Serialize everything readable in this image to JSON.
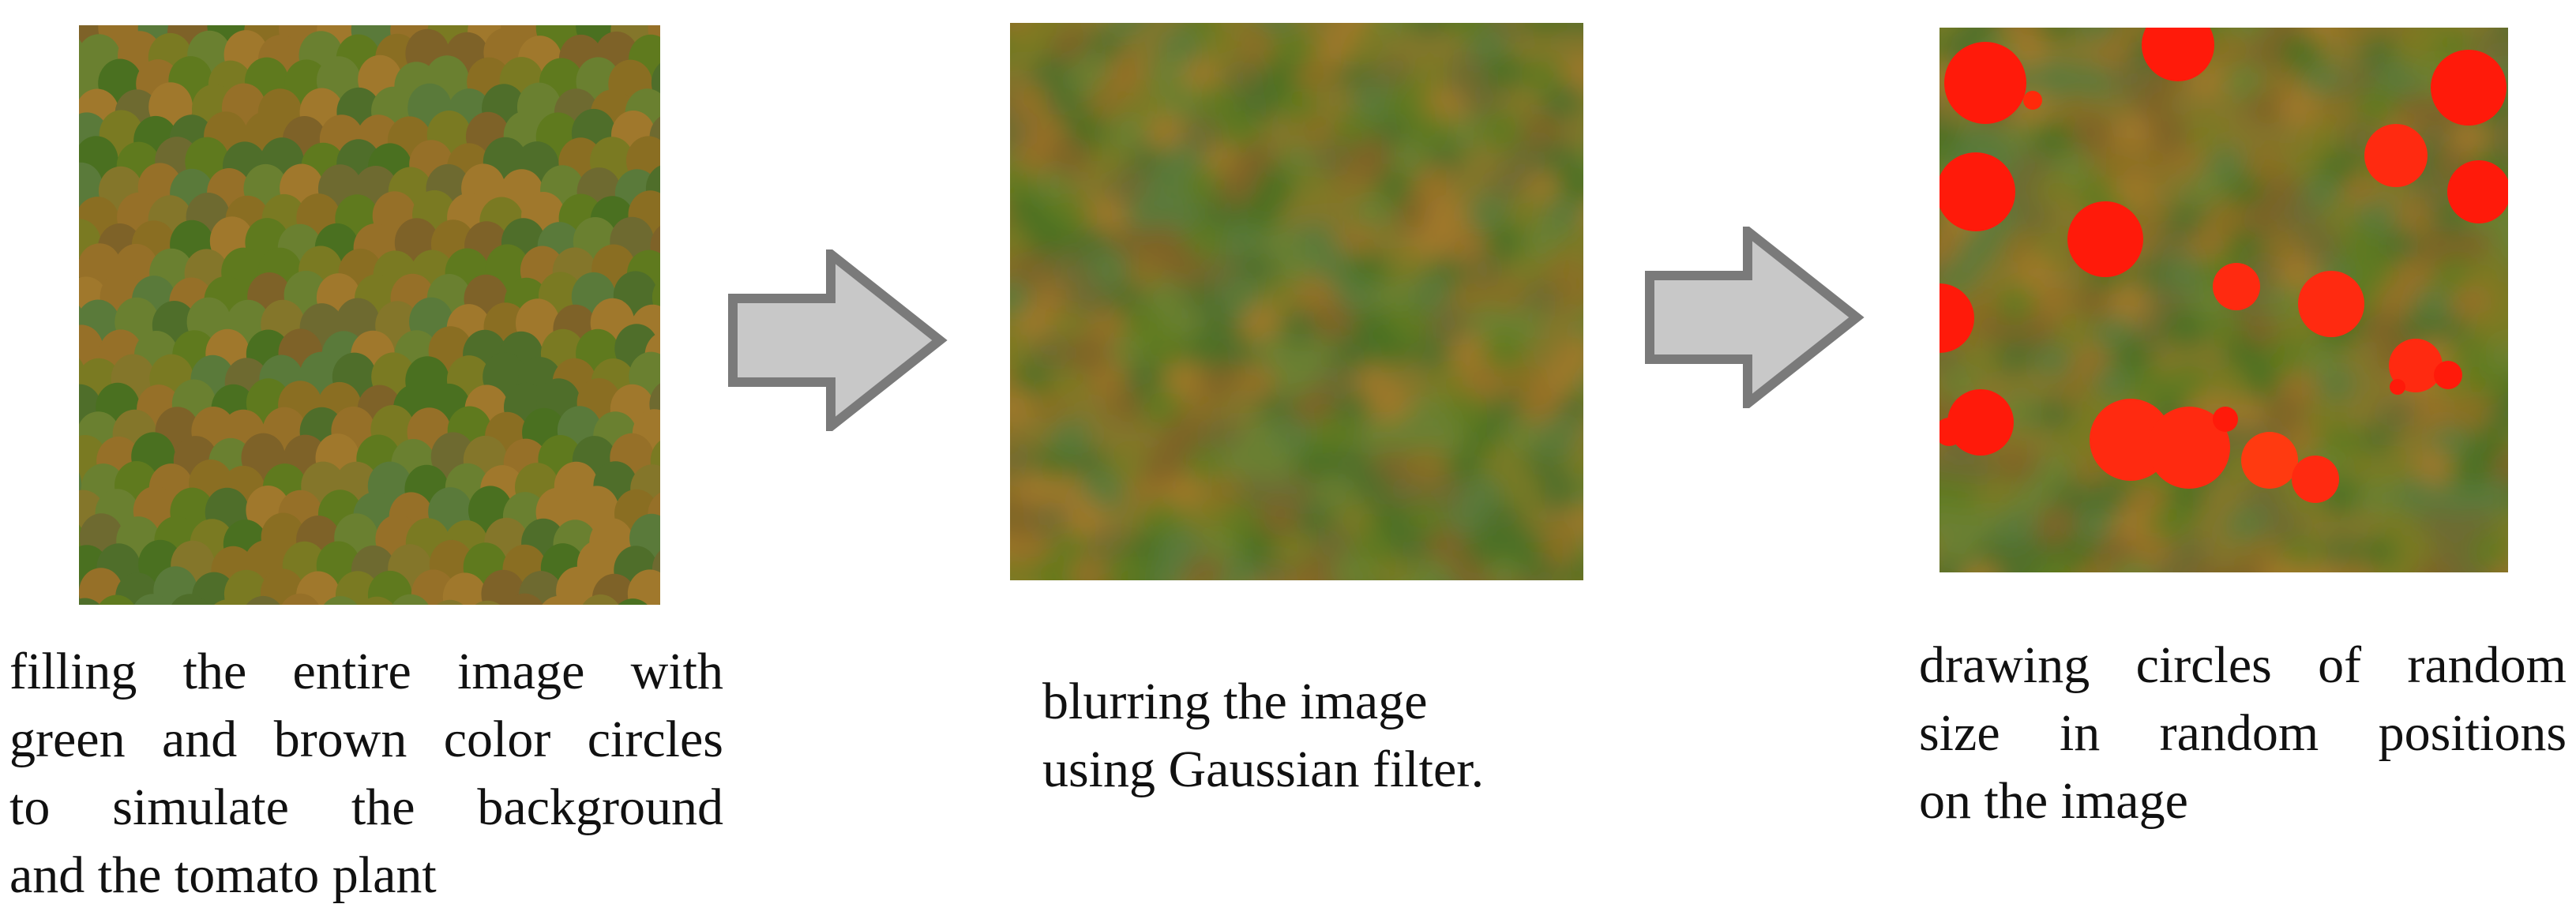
{
  "steps": [
    {
      "caption_lines": [
        "filling the entire image with",
        "green and brown color circles",
        "to simulate the background",
        "and the tomato plant"
      ]
    },
    {
      "caption_lines": [
        "blurring the image",
        "using Gaussian filter."
      ]
    },
    {
      "caption_lines": [
        "drawing circles of random",
        "size in random positions",
        "on the image"
      ]
    }
  ],
  "colors": {
    "green": "#5a7a2a",
    "brown": "#8a6a2a",
    "red": "#ff1a0a",
    "arrow_fill": "#c8c8c8",
    "arrow_stroke": "#7a7a7a"
  },
  "icons": {
    "arrow": "right-arrow-icon"
  }
}
